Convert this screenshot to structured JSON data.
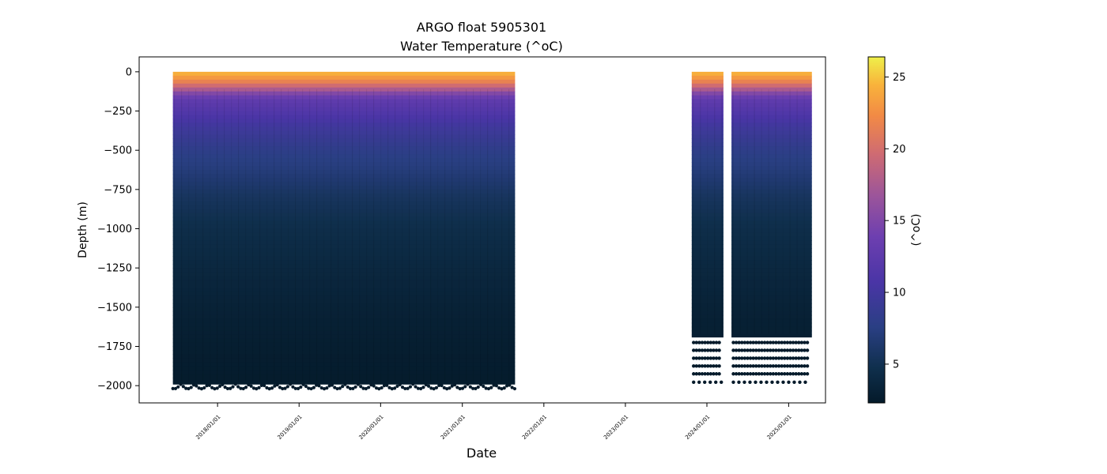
{
  "chart_data": {
    "type": "heatmap",
    "title": "ARGO float 5905301",
    "subtitle": "Water Temperature (^oC)",
    "xlabel": "Date",
    "ylabel": "Depth (m)",
    "colorbar_label": "(^oC)",
    "x_range": [
      "2017-01-15",
      "2025-06-15"
    ],
    "y_range": [
      -2110,
      95
    ],
    "x_ticks": [
      {
        "date": "2018-01-01",
        "label": "2018/01/01"
      },
      {
        "date": "2019-01-01",
        "label": "2019/01/01"
      },
      {
        "date": "2020-01-01",
        "label": "2020/01/01"
      },
      {
        "date": "2021-01-01",
        "label": "2021/01/01"
      },
      {
        "date": "2022-01-01",
        "label": "2022/01/01"
      },
      {
        "date": "2023-01-01",
        "label": "2023/01/01"
      },
      {
        "date": "2024-01-01",
        "label": "2024/01/01"
      },
      {
        "date": "2025-01-01",
        "label": "2025/01/01"
      }
    ],
    "y_ticks": [
      0,
      -250,
      -500,
      -750,
      -1000,
      -1250,
      -1500,
      -1750,
      -2000
    ],
    "y_tick_labels": [
      "0",
      "−250",
      "−500",
      "−750",
      "−1000",
      "−1250",
      "−1500",
      "−1750",
      "−2000"
    ],
    "colorbar": {
      "range": [
        2.3,
        26.4
      ],
      "ticks": [
        5,
        10,
        15,
        20,
        25
      ],
      "tick_labels": [
        "5",
        "10",
        "15",
        "20",
        "25"
      ],
      "colormap": [
        "#041a2a",
        "#0f2f4c",
        "#2a3f84",
        "#4a35a6",
        "#6d3fb0",
        "#9c559a",
        "#cf6b72",
        "#f28a45",
        "#f8b33b",
        "#eff04a"
      ]
    },
    "segments": [
      {
        "start": "2017-06-15",
        "end": "2021-08-25",
        "continuous_min_depth": -1990,
        "max_depth": -2020
      },
      {
        "start": "2023-10-25",
        "end": "2024-03-15",
        "continuous_min_depth": -1690,
        "max_depth": -1980
      },
      {
        "start": "2024-04-20",
        "end": "2025-04-15",
        "continuous_min_depth": -1690,
        "max_depth": -1980
      }
    ],
    "profile_temperature": [
      {
        "depth": 0,
        "temp": 24
      },
      {
        "depth": -30,
        "temp": 22.5
      },
      {
        "depth": -60,
        "temp": 20.5
      },
      {
        "depth": -100,
        "temp": 17.5
      },
      {
        "depth": -140,
        "temp": 14
      },
      {
        "depth": -180,
        "temp": 12
      },
      {
        "depth": -250,
        "temp": 11
      },
      {
        "depth": -350,
        "temp": 9.5
      },
      {
        "depth": -500,
        "temp": 8
      },
      {
        "depth": -650,
        "temp": 7
      },
      {
        "depth": -800,
        "temp": 5.8
      },
      {
        "depth": -1000,
        "temp": 4.8
      },
      {
        "depth": -1250,
        "temp": 4
      },
      {
        "depth": -1500,
        "temp": 3.3
      },
      {
        "depth": -1750,
        "temp": 2.8
      },
      {
        "depth": -2000,
        "temp": 2.5
      }
    ],
    "discrete_levels": [
      -1725,
      -1775,
      -1825,
      -1875,
      -1925,
      -1978
    ]
  }
}
